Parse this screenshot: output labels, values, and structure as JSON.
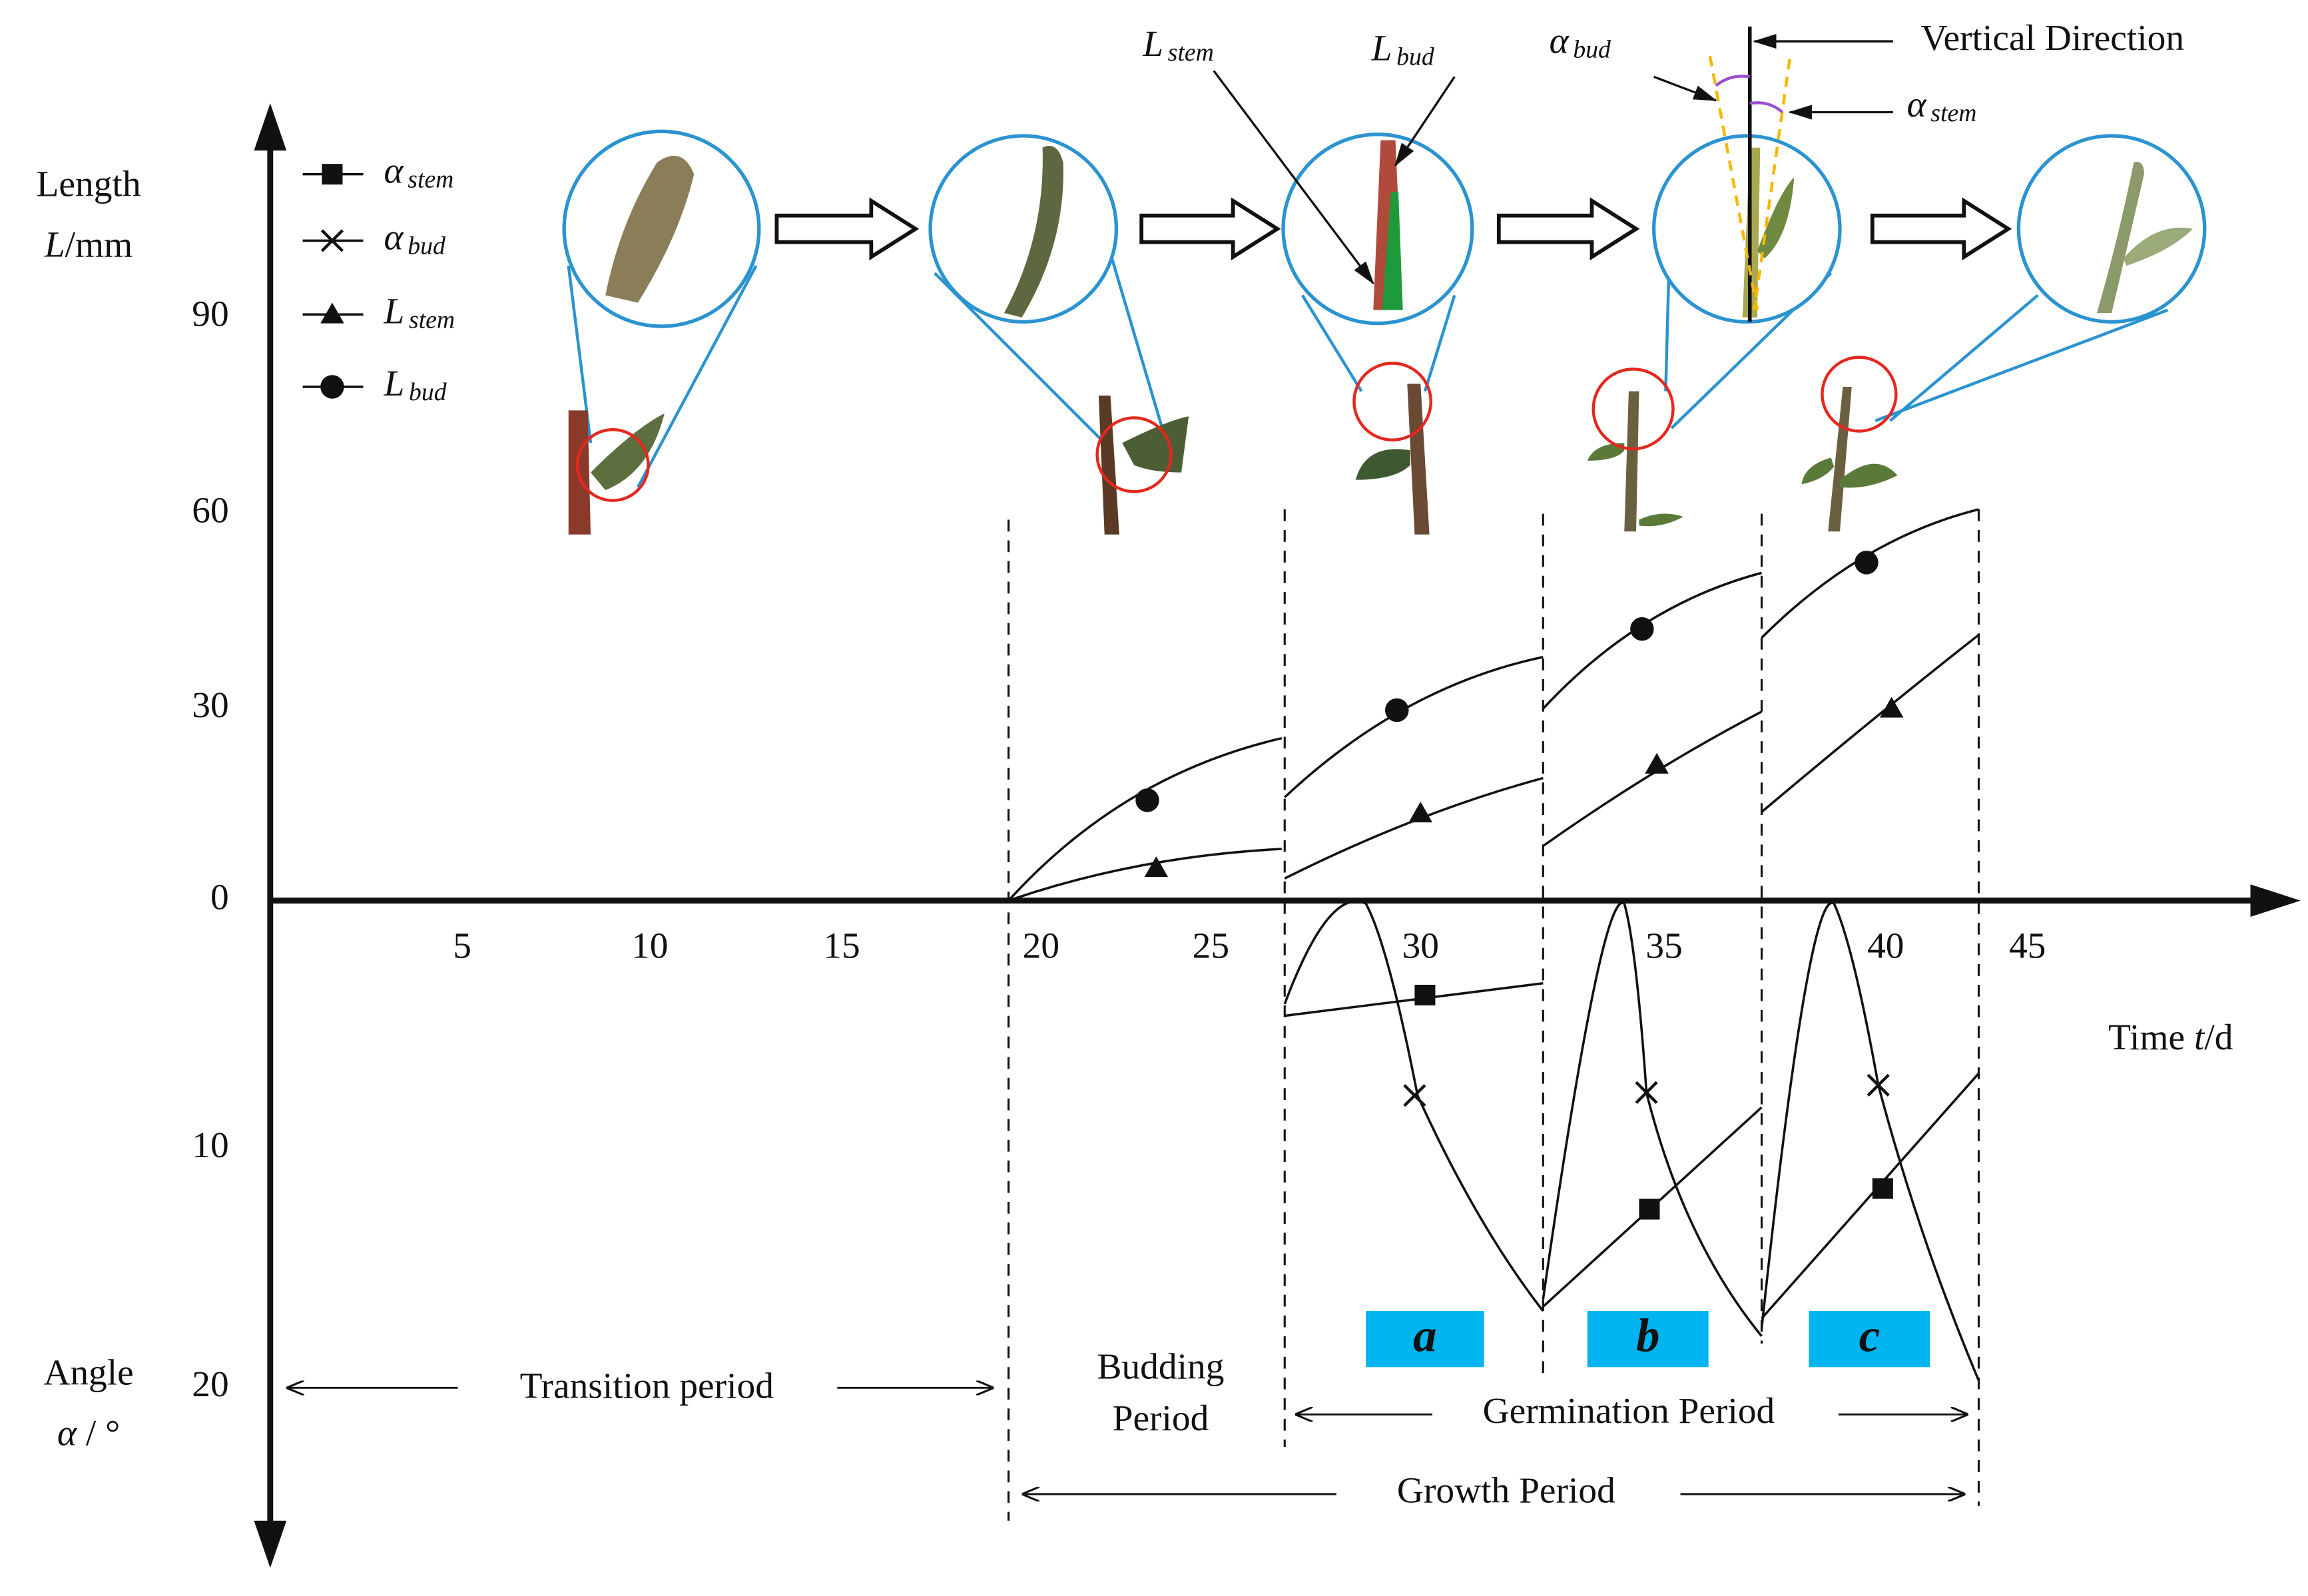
{
  "y_axis_upper": {
    "title": "Length",
    "var": "L",
    "unit": "/mm",
    "ticks": [
      "90",
      "60",
      "30",
      "0"
    ]
  },
  "y_axis_lower": {
    "title": "Angle",
    "var": "α",
    "unit": " / °",
    "ticks": [
      "10",
      "20"
    ]
  },
  "x_axis": {
    "title": "Time ",
    "var": "t",
    "unit": "/d",
    "ticks": [
      "5",
      "10",
      "15",
      "20",
      "25",
      "30",
      "35",
      "40",
      "45"
    ]
  },
  "legend": [
    {
      "symbol": "α",
      "subscript": "stem"
    },
    {
      "symbol": "α",
      "subscript": "bud"
    },
    {
      "symbol": "L",
      "subscript": "stem"
    },
    {
      "symbol": "L",
      "subscript": "bud"
    }
  ],
  "annotations": {
    "l_stem": {
      "symbol": "L",
      "subscript": "stem"
    },
    "l_bud": {
      "symbol": "L",
      "subscript": "bud"
    },
    "a_bud": {
      "symbol": "α",
      "subscript": "bud"
    },
    "a_stem": {
      "symbol": "α",
      "subscript": "stem"
    },
    "vertical": "Vertical Direction"
  },
  "periods": {
    "transition": "Transition period",
    "budding": [
      "Budding",
      "Period"
    ],
    "germination": "Germination Period",
    "growth": "Growth Period",
    "stages": [
      "a",
      "b",
      "c"
    ]
  }
}
